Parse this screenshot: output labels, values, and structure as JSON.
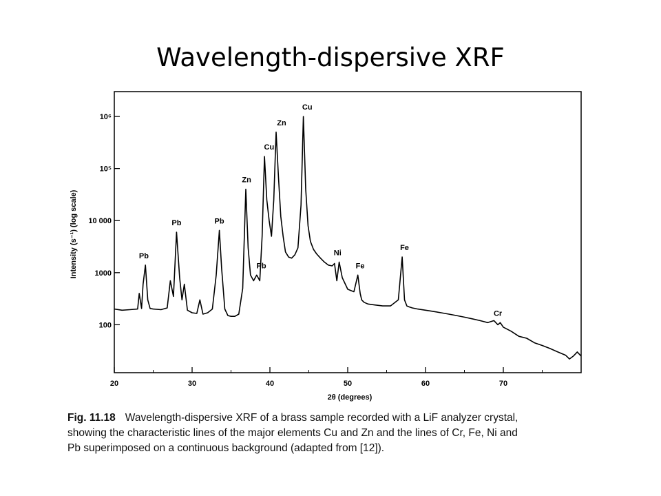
{
  "slide": {
    "title": "Wavelength-dispersive XRF"
  },
  "caption": {
    "label": "Fig. 11.18",
    "lines": [
      "Wavelength-dispersive XRF of a brass sample recorded with a LiF analyzer crystal,",
      "showing the characteristic lines of the major elements Cu and Zn and the lines of Cr, Fe, Ni and",
      "Pb superimposed on a continuous background (adapted from [12])."
    ]
  },
  "chart_data": {
    "type": "line",
    "xlabel": "2θ (degrees)",
    "ylabel": "Intensity (s⁻¹) (log scale)",
    "x_ticks": [
      20,
      30,
      40,
      50,
      60,
      70
    ],
    "y_ticks": [
      {
        "value": 100,
        "label": "100"
      },
      {
        "value": 1000,
        "label": "1000"
      },
      {
        "value": 10000,
        "label": "10 000"
      },
      {
        "value": 100000,
        "label": "10⁵"
      },
      {
        "value": 1000000,
        "label": "10⁶"
      }
    ],
    "xlim": [
      20,
      80
    ],
    "ylim": [
      12,
      3000000
    ],
    "y_scale": "log",
    "grid": false,
    "series": [
      {
        "x": [
          20.0,
          21.0,
          22.0,
          23.0,
          23.2,
          23.5,
          23.7,
          24.0,
          24.3,
          24.6,
          25.0,
          26.0,
          26.8,
          27.2,
          27.6,
          28.0,
          28.4,
          28.7,
          29.0,
          29.4,
          30.0,
          30.6,
          31.0,
          31.4,
          32.0,
          32.6,
          33.1,
          33.5,
          33.8,
          34.2,
          34.6,
          35.0,
          35.5,
          36.0,
          36.5,
          36.9,
          37.2,
          37.5,
          37.9,
          38.3,
          38.7,
          39.0,
          39.3,
          39.6,
          39.9,
          40.2,
          40.5,
          40.8,
          41.1,
          41.4,
          41.7,
          42.0,
          42.4,
          42.8,
          43.2,
          43.6,
          44.0,
          44.3,
          44.6,
          44.9,
          45.2,
          45.6,
          46.0,
          46.5,
          47.0,
          47.5,
          48.0,
          48.3,
          48.6,
          48.9,
          49.3,
          50.0,
          50.8,
          51.3,
          51.6,
          51.8,
          52.1,
          52.6,
          53.5,
          54.5,
          55.5,
          56.5,
          57.0,
          57.3,
          57.6,
          57.9,
          58.3,
          59.0,
          60.0,
          61.0,
          62.0,
          63.0,
          64.0,
          65.0,
          66.0,
          67.0,
          68.0,
          68.8,
          69.3,
          69.6,
          70.0,
          71.0,
          72.0,
          73.0,
          74.0,
          75.0,
          76.0,
          77.0,
          78.0,
          78.5,
          79.0,
          79.5,
          80.0
        ],
        "y": [
          200,
          190,
          195,
          200,
          400,
          205,
          600,
          1400,
          300,
          205,
          200,
          195,
          210,
          700,
          350,
          6000,
          800,
          300,
          600,
          190,
          170,
          165,
          300,
          160,
          170,
          200,
          900,
          6500,
          1200,
          200,
          150,
          145,
          145,
          160,
          500,
          40000,
          3000,
          900,
          700,
          900,
          700,
          5000,
          170000,
          25000,
          10000,
          5000,
          25000,
          500000,
          70000,
          12000,
          5000,
          2500,
          2000,
          1900,
          2200,
          3000,
          20000,
          1000000,
          40000,
          8000,
          4000,
          2800,
          2300,
          1900,
          1600,
          1400,
          1350,
          1500,
          700,
          1600,
          800,
          480,
          430,
          900,
          400,
          300,
          270,
          250,
          240,
          230,
          230,
          300,
          2000,
          300,
          230,
          220,
          210,
          200,
          190,
          180,
          170,
          160,
          150,
          140,
          130,
          120,
          110,
          120,
          100,
          110,
          90,
          75,
          60,
          55,
          45,
          40,
          35,
          30,
          26,
          22,
          25,
          30,
          25
        ]
      }
    ],
    "annotations": [
      {
        "text": "Pb",
        "x": 23.8,
        "y": 1400
      },
      {
        "text": "Pb",
        "x": 28.0,
        "y": 6000
      },
      {
        "text": "Pb",
        "x": 33.5,
        "y": 6500
      },
      {
        "text": "Zn",
        "x": 37.0,
        "y": 40000
      },
      {
        "text": "Pb",
        "x": 38.9,
        "y": 900
      },
      {
        "text": "Cu",
        "x": 39.9,
        "y": 170000
      },
      {
        "text": "Zn",
        "x": 41.5,
        "y": 500000
      },
      {
        "text": "Cu",
        "x": 44.8,
        "y": 1000000
      },
      {
        "text": "Ni",
        "x": 48.7,
        "y": 1600
      },
      {
        "text": "Fe",
        "x": 51.6,
        "y": 900
      },
      {
        "text": "Fe",
        "x": 57.3,
        "y": 2000
      },
      {
        "text": "Cr",
        "x": 69.3,
        "y": 110
      }
    ]
  }
}
